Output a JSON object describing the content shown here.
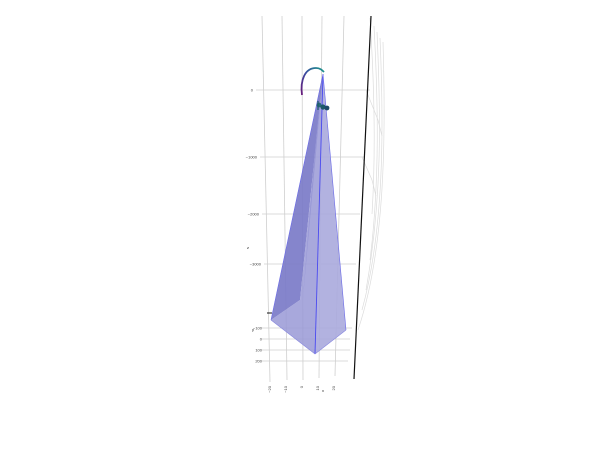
{
  "chart_data": {
    "type": "3d-surface",
    "title": "",
    "colors": {
      "pyramid_face_light": "#aaaadd",
      "pyramid_face_dark": "#7b7bc8",
      "pyramid_edge": "#4a4af0",
      "trajectory_start": "#6a1b7a",
      "trajectory_end": "#1a9a8a",
      "marker": "#1d5a6a",
      "axis_line": "#111111",
      "grid": "#cfcfcf"
    },
    "axes": {
      "z": {
        "label": "z",
        "ticks": [
          "0",
          "−1000",
          "−2000",
          "−3000"
        ]
      },
      "y": {
        "label": "y",
        "ticks": [
          "−100",
          "0",
          "100",
          "200"
        ]
      },
      "x": {
        "label": "x",
        "ticks": [
          "−20",
          "−10",
          "0",
          "10",
          "20"
        ]
      }
    },
    "grid": true,
    "legend": "none"
  }
}
